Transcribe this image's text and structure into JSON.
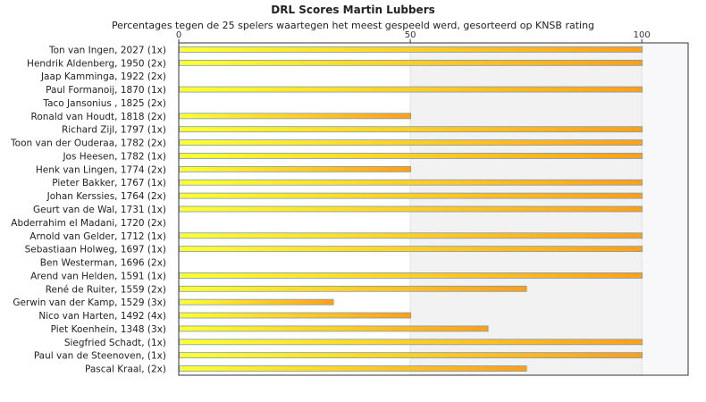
{
  "chart_data": {
    "type": "bar",
    "orientation": "horizontal",
    "title": "DRL Scores Martin Lubbers",
    "subtitle": "Percentages tegen de 25 spelers waartegen het meest gespeeld werd, gesorteerd op KNSB rating",
    "xlim": [
      0,
      110
    ],
    "xticks": [
      0,
      50,
      100
    ],
    "grid": false,
    "colors": {
      "bar_start": "#ffff33",
      "bar_end": "#ff9f1a",
      "bar_stroke": "#7a9ab0",
      "band_light": "#f2f2f2",
      "band_lighter": "#f8f8fb",
      "axis": "#333333"
    },
    "categories": [
      "Ton van Ingen, 2027 (1x)",
      "Hendrik Aldenberg, 1950 (2x)",
      "Jaap Kamminga, 1922 (2x)",
      "Paul Formanoij, 1870 (1x)",
      "Taco Jansonius , 1825 (2x)",
      "Ronald van Houdt, 1818 (2x)",
      "Richard Zijl, 1797 (1x)",
      "Toon van der Ouderaa, 1782 (2x)",
      "Jos Heesen, 1782 (1x)",
      "Henk van Lingen, 1774 (2x)",
      "Pieter Bakker, 1767 (1x)",
      "Johan Kerssies, 1764 (2x)",
      "Geurt van de Wal, 1731 (1x)",
      "Abderrahim el Madani, 1720 (2x)",
      "Arnold van Gelder, 1712 (1x)",
      "Sebastiaan Holweg, 1697 (1x)",
      "Ben Westerman, 1696 (2x)",
      "Arend van Helden, 1591 (1x)",
      "René de Ruiter, 1559 (2x)",
      "Gerwin van der Kamp, 1529 (3x)",
      "Nico van Harten, 1492 (4x)",
      "Piet Koenhein, 1348 (3x)",
      "Siegfried Schadt,  (1x)",
      "Paul van de Steenoven,  (1x)",
      "Pascal Kraal,  (2x)"
    ],
    "values": [
      100,
      100,
      0,
      100,
      0,
      50,
      100,
      100,
      100,
      50,
      100,
      100,
      100,
      0,
      100,
      100,
      0,
      100,
      75,
      33.3,
      50,
      66.7,
      100,
      100,
      75
    ]
  }
}
